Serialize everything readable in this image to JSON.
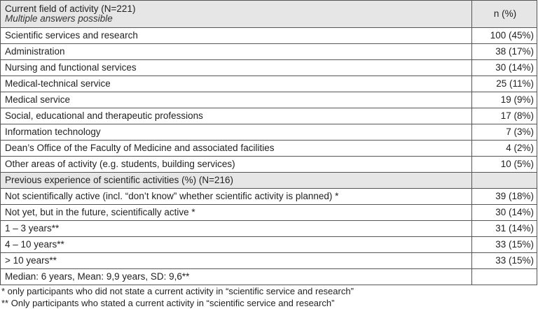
{
  "section1": {
    "title": "Current field of activity (N=221)",
    "subtitle": "Multiple answers possible",
    "col_header": "n (%)",
    "rows": [
      {
        "label": "Scientific services and research",
        "value": "100 (45%)"
      },
      {
        "label": "Administration",
        "value": "38 (17%)"
      },
      {
        "label": "Nursing and functional services",
        "value": "30 (14%)"
      },
      {
        "label": "Medical-technical service",
        "value": "25 (11%)"
      },
      {
        "label": "Medical service",
        "value": "19 (9%)"
      },
      {
        "label": "Social, educational and therapeutic professions",
        "value": "17 (8%)"
      },
      {
        "label": "Information technology",
        "value": "7 (3%)"
      },
      {
        "label": "Dean’s Office of the Faculty of Medicine and associated facilities",
        "value": "4 (2%)"
      },
      {
        "label": "Other areas of activity (e.g. students, building services)",
        "value": "10 (5%)"
      }
    ]
  },
  "section2": {
    "title": "Previous experience of scientific activities (%) (N=216)",
    "rows": [
      {
        "label": "Not scientifically active (incl. “don’t know” whether scientific activity is planned) *",
        "value": "39 (18%)"
      },
      {
        "label": "Not yet, but in the future, scientifically active *",
        "value": "30 (14%)"
      },
      {
        "label": "1 – 3 years**",
        "value": "31 (14%)"
      },
      {
        "label": "4 – 10 years**",
        "value": "33 (15%)"
      },
      {
        "label": "> 10 years**",
        "value": "33 (15%)"
      },
      {
        "label": "Median: 6 years, Mean: 9,9 years, SD: 9,6**",
        "value": ""
      }
    ]
  },
  "footnotes": [
    "* only participants who did not state a current activity in “scientific service and research”",
    "** Only participants who stated a current activity in “scientific service and research”"
  ]
}
